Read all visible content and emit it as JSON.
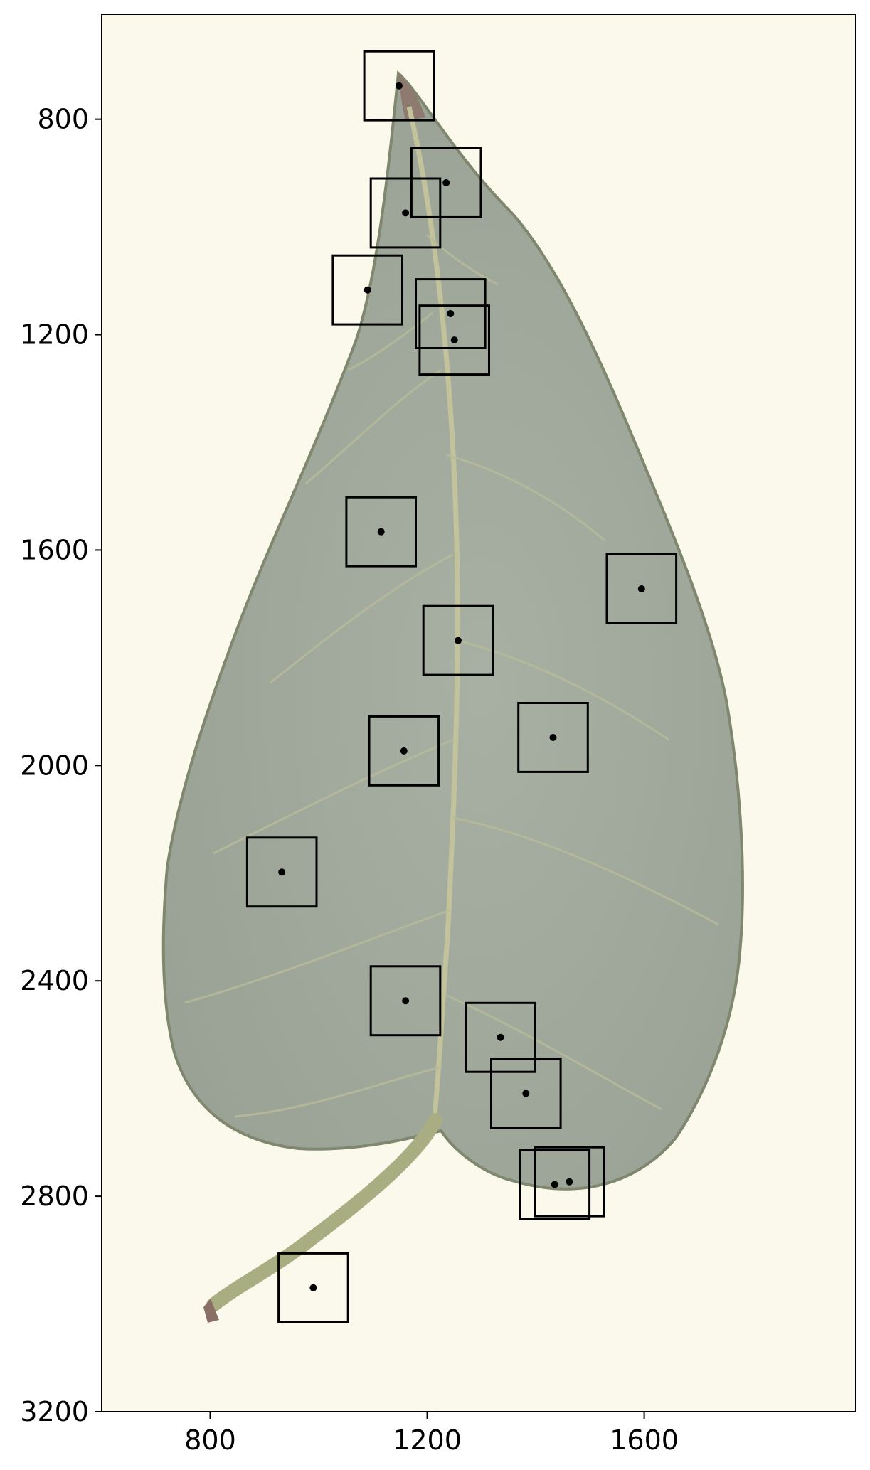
{
  "chart_data": {
    "type": "scatter",
    "title": "",
    "xlabel": "",
    "ylabel": "",
    "background": "leaf-specimen-image",
    "y_inverted": true,
    "grid": false,
    "xlim": [
      600,
      1990
    ],
    "ylim": [
      3200,
      605
    ],
    "xticks": [
      800,
      1200,
      1600
    ],
    "yticks": [
      800,
      1200,
      1600,
      2000,
      2400,
      2800,
      3200
    ],
    "box_size": 128,
    "points": [
      {
        "x": 1148,
        "y": 738
      },
      {
        "x": 1235,
        "y": 918
      },
      {
        "x": 1160,
        "y": 974
      },
      {
        "x": 1090,
        "y": 1117
      },
      {
        "x": 1243,
        "y": 1161
      },
      {
        "x": 1250,
        "y": 1210
      },
      {
        "x": 1115,
        "y": 1566
      },
      {
        "x": 1595,
        "y": 1672
      },
      {
        "x": 1257,
        "y": 1768
      },
      {
        "x": 1432,
        "y": 1948
      },
      {
        "x": 1157,
        "y": 1973
      },
      {
        "x": 932,
        "y": 2198
      },
      {
        "x": 1160,
        "y": 2437
      },
      {
        "x": 1335,
        "y": 2505
      },
      {
        "x": 1382,
        "y": 2609
      },
      {
        "x": 1462,
        "y": 2773
      },
      {
        "x": 1435,
        "y": 2778
      },
      {
        "x": 990,
        "y": 2970
      }
    ],
    "colors": {
      "background": "#fbf9ec",
      "leaf": "#a3ab9e",
      "leaf_edge": "#7f876f",
      "vein": "#c2c39a",
      "petiole": "#a9ae82",
      "marker": "#000000"
    }
  }
}
